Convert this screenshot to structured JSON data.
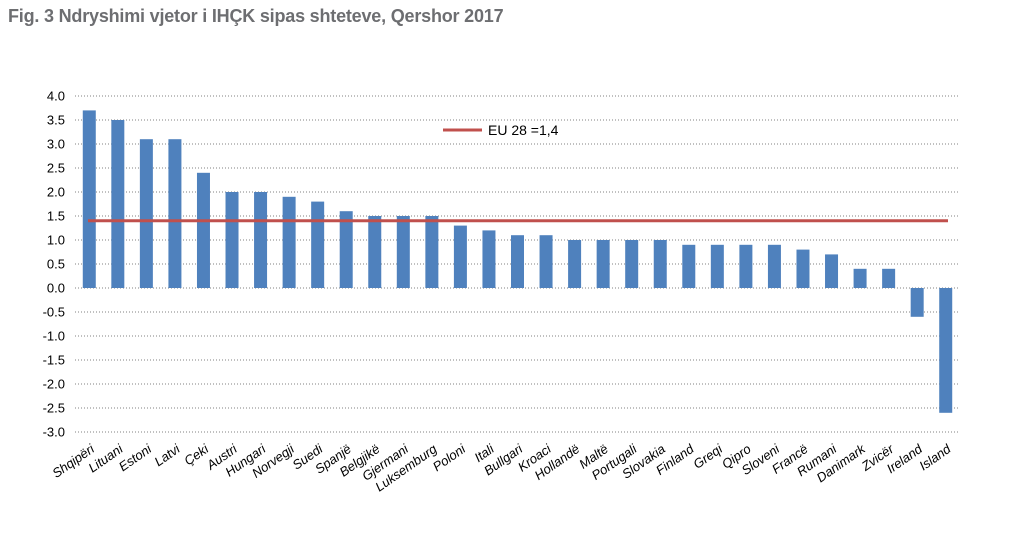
{
  "title": "Fig. 3 Ndryshimi vjetor i IHÇK sipas shteteve, Qershor 2017",
  "colors": {
    "bar": "#4f81bd",
    "ref_line": "#c0504d",
    "grid": "#808080",
    "title": "#6d6e71"
  },
  "chart_data": {
    "type": "bar",
    "title": "Fig. 3 Ndryshimi vjetor i IHÇK sipas shteteve, Qershor 2017",
    "xlabel": "",
    "ylabel": "",
    "categories": [
      "Shqipëri",
      "Lituani",
      "Estoni",
      "Latvi",
      "Çeki",
      "Austri",
      "Hungari",
      "Norvegji",
      "Suedi",
      "Spanjë",
      "Belgjikë",
      "Gjermani",
      "Luksemburg",
      "Poloni",
      "Itali",
      "Bullgari",
      "Kroaci",
      "Hollandë",
      "Maltë",
      "Portugali",
      "Slovakia",
      "Finland",
      "Greqi",
      "Qipro",
      "Sloveni",
      "Francë",
      "Rumani",
      "Danimark",
      "Zvicër",
      "Ireland",
      "Island"
    ],
    "values": [
      3.7,
      3.5,
      3.1,
      3.1,
      2.4,
      2.0,
      2.0,
      1.9,
      1.8,
      1.6,
      1.5,
      1.5,
      1.5,
      1.3,
      1.2,
      1.1,
      1.1,
      1.0,
      1.0,
      1.0,
      1.0,
      0.9,
      0.9,
      0.9,
      0.9,
      0.8,
      0.7,
      0.4,
      0.4,
      -0.6,
      -2.6
    ],
    "ylim": [
      -3.0,
      4.0
    ],
    "yticks": [
      "4.0",
      "3.5",
      "3.0",
      "2.5",
      "2.0",
      "1.5",
      "1.0",
      "0.5",
      "0.0",
      "-0.5",
      "-1.0",
      "-1.5",
      "-2.0",
      "-2.5",
      "-3.0"
    ],
    "grid": true,
    "reference_line": {
      "label": "EU 28 =1,4",
      "value": 1.4
    },
    "legend_position": "top-right"
  }
}
